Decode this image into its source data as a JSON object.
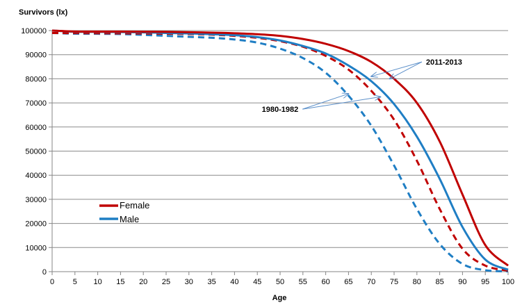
{
  "chart_data": {
    "type": "line",
    "title": "",
    "xlabel": "Age",
    "ylabel": "Survivors (lx)",
    "xlim": [
      0,
      100
    ],
    "ylim": [
      0,
      100000
    ],
    "x_ticks": [
      0,
      5,
      10,
      15,
      20,
      25,
      30,
      35,
      40,
      45,
      50,
      55,
      60,
      65,
      70,
      75,
      80,
      85,
      90,
      95,
      100
    ],
    "y_ticks": [
      0,
      10000,
      20000,
      30000,
      40000,
      50000,
      60000,
      70000,
      80000,
      90000,
      100000
    ],
    "grid": "horizontal",
    "legend": {
      "placement": "lower-left",
      "entries": [
        {
          "label": "Female",
          "color": "#c00000"
        },
        {
          "label": "Male",
          "color": "#1f7ec4"
        }
      ]
    },
    "annotations": [
      {
        "text": "2011-2013",
        "targets": "solid lines",
        "points": [
          {
            "x": 70,
            "y": 81000
          },
          {
            "x": 74,
            "y": 80000
          }
        ],
        "label_at": {
          "x": 82,
          "y": 87000
        }
      },
      {
        "text": "1980-1982",
        "targets": "dashed lines",
        "points": [
          {
            "x": 65,
            "y": 73800
          },
          {
            "x": 72,
            "y": 72500
          }
        ],
        "label_at": {
          "x": 54,
          "y": 67400
        }
      }
    ],
    "series": [
      {
        "name": "Female 2011-2013",
        "sex": "Female",
        "period": "2011-2013",
        "style": "solid",
        "color": "#c00000",
        "x": [
          0,
          5,
          10,
          15,
          20,
          25,
          30,
          35,
          40,
          45,
          50,
          55,
          60,
          65,
          70,
          75,
          80,
          85,
          90,
          95,
          100
        ],
        "values": [
          100000,
          99600,
          99580,
          99560,
          99500,
          99450,
          99300,
          99150,
          98900,
          98500,
          97800,
          96500,
          94500,
          91500,
          87000,
          80000,
          70000,
          54000,
          32000,
          11000,
          2500
        ]
      },
      {
        "name": "Male 2011-2013",
        "sex": "Male",
        "period": "2011-2013",
        "style": "solid",
        "color": "#1f7ec4",
        "x": [
          0,
          5,
          10,
          15,
          20,
          25,
          30,
          35,
          40,
          45,
          50,
          55,
          60,
          65,
          70,
          75,
          80,
          85,
          90,
          95,
          100
        ],
        "values": [
          100000,
          99500,
          99450,
          99400,
          99250,
          99000,
          98800,
          98500,
          98100,
          97300,
          95900,
          93600,
          90500,
          85500,
          79000,
          69500,
          56000,
          38500,
          18500,
          5000,
          800
        ]
      },
      {
        "name": "Female 1980-1982",
        "sex": "Female",
        "period": "1980-1982",
        "style": "dashed",
        "color": "#c00000",
        "x": [
          0,
          5,
          10,
          15,
          20,
          25,
          30,
          35,
          40,
          45,
          50,
          55,
          60,
          65,
          70,
          75,
          80,
          85,
          90,
          95,
          100
        ],
        "values": [
          99000,
          98950,
          98900,
          98850,
          98800,
          98700,
          98550,
          98300,
          97800,
          97000,
          95600,
          93300,
          89500,
          83800,
          75000,
          63000,
          46000,
          26000,
          9500,
          2500,
          400
        ]
      },
      {
        "name": "Male 1980-1982",
        "sex": "Male",
        "period": "1980-1982",
        "style": "dashed",
        "color": "#1f7ec4",
        "x": [
          0,
          5,
          10,
          15,
          20,
          25,
          30,
          35,
          40,
          45,
          50,
          55,
          60,
          65,
          70,
          75,
          80,
          85,
          90,
          95,
          100
        ],
        "values": [
          99000,
          98700,
          98650,
          98550,
          98200,
          97800,
          97400,
          97000,
          96300,
          95000,
          92500,
          88600,
          82500,
          73000,
          60500,
          44000,
          26000,
          11500,
          3200,
          600,
          100
        ]
      }
    ]
  }
}
